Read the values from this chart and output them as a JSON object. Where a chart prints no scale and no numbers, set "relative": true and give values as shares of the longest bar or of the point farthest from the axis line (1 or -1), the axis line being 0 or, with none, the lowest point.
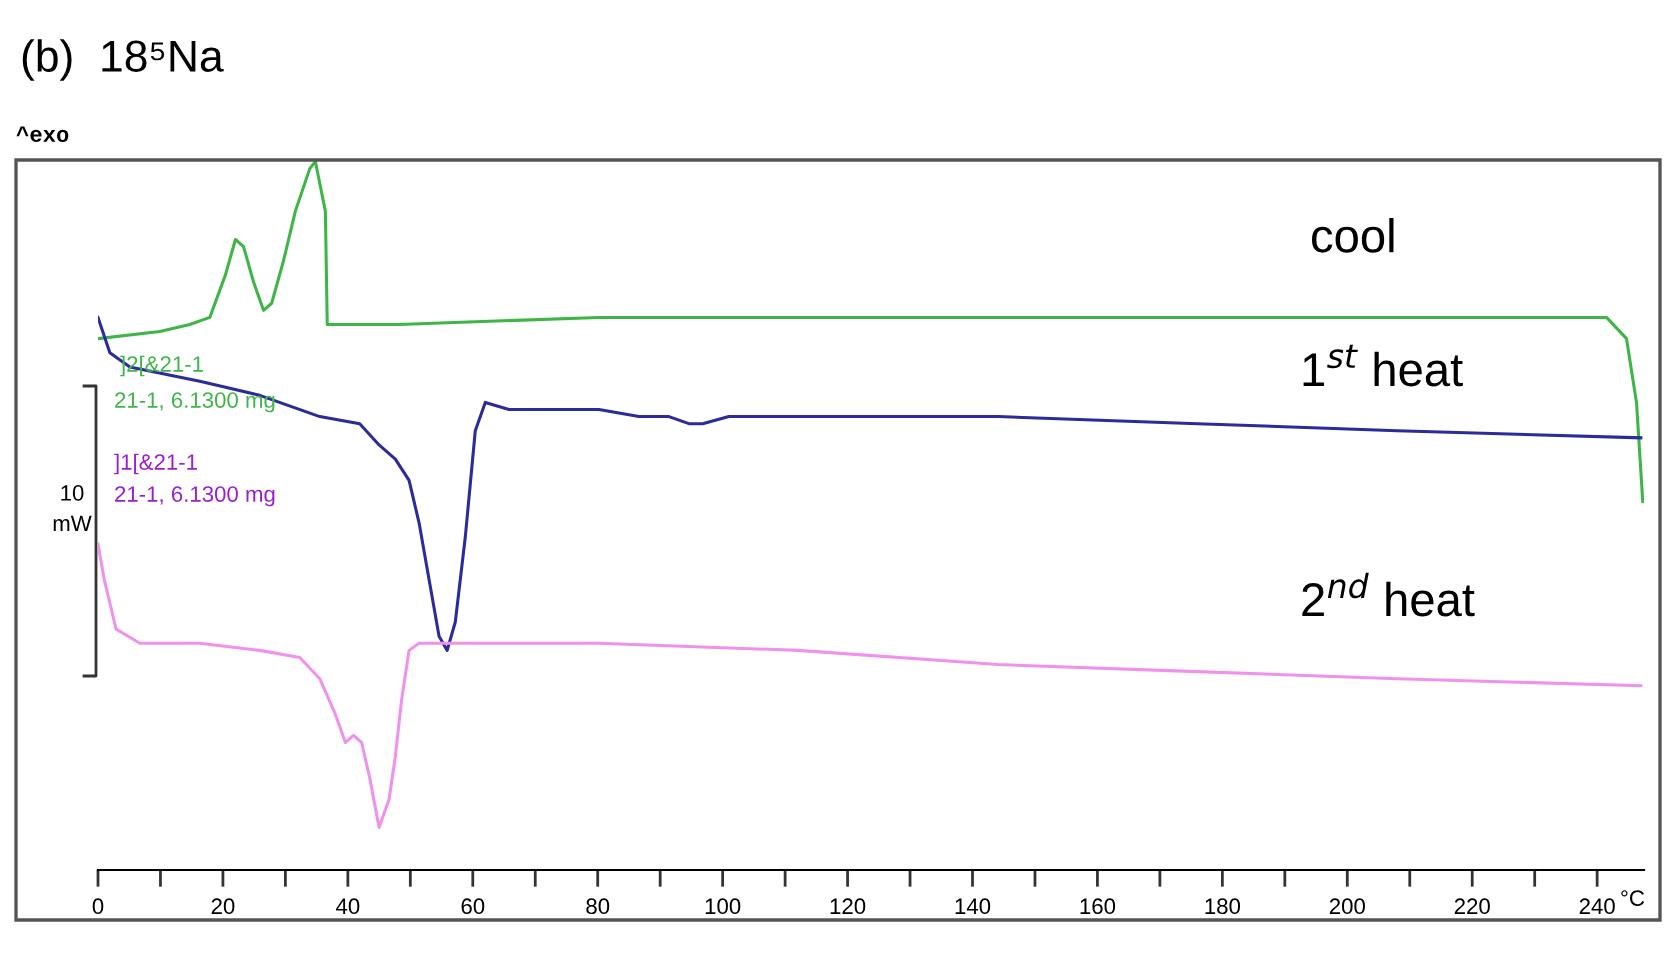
{
  "chart_data": {
    "type": "line",
    "title": "(b)  18⁵Na",
    "xlabel": "°C",
    "relative": true,
    "xlim": [
      0,
      247.5
    ],
    "xticks": [
      0,
      {
        "value": 10,
        "label": null
      },
      20,
      {
        "value": 30,
        "label": null
      },
      40,
      {
        "value": 50,
        "label": null
      },
      60,
      {
        "value": 70,
        "label": null
      },
      80,
      {
        "value": 90,
        "label": null
      },
      100,
      {
        "value": 110,
        "label": null
      },
      120,
      {
        "value": 130,
        "label": null
      },
      140,
      {
        "value": 150,
        "label": null
      },
      160,
      {
        "value": 170,
        "label": null
      },
      180,
      {
        "value": 190,
        "label": null
      },
      200,
      {
        "value": 210,
        "label": null
      },
      220,
      {
        "value": 230,
        "label": null
      },
      240
    ],
    "grid": false,
    "legend": false,
    "marker": "none",
    "line_style": "solid",
    "annotations": [
      "^exo",
      "]2[&21-1",
      "21-1, 6.1300 mg",
      "]1[&21-1",
      "21-1, 6.1300 mg",
      "10 mW"
    ],
    "series": [
      {
        "name": "cool",
        "color": "#3fb548",
        "x": [
          0,
          9.9,
          14.7,
          17.9,
          20.4,
          22.0,
          23.3,
          24.9,
          26.5,
          27.8,
          29.7,
          31.6,
          33.9,
          34.8,
          36.4,
          36.7,
          48.2,
          80.2,
          112.1,
          144.1,
          176.0,
          208.0,
          233.5,
          241.5,
          244.7,
          246.3,
          247.3
        ],
        "values": [
          0.75,
          0.76,
          0.77,
          0.78,
          0.84,
          0.89,
          0.88,
          0.83,
          0.79,
          0.8,
          0.86,
          0.93,
          0.99,
          1.0,
          0.93,
          0.77,
          0.77,
          0.78,
          0.78,
          0.78,
          0.78,
          0.78,
          0.78,
          0.78,
          0.75,
          0.66,
          0.52
        ]
      },
      {
        "name": "1$^{st}$ heat",
        "color": "#2b2b9c",
        "x": [
          0,
          1.9,
          5.1,
          16.3,
          25.9,
          35.5,
          41.9,
          45.0,
          47.6,
          49.8,
          51.4,
          53.0,
          54.6,
          55.9,
          57.2,
          58.8,
          60.4,
          62.0,
          65.8,
          70.6,
          80.2,
          86.6,
          91.4,
          94.6,
          96.8,
          101.0,
          105.8,
          112.1,
          144.1,
          176.0,
          208.0,
          247.0
        ],
        "values": [
          0.78,
          0.73,
          0.71,
          0.69,
          0.67,
          0.64,
          0.63,
          0.6,
          0.58,
          0.55,
          0.49,
          0.41,
          0.33,
          0.31,
          0.35,
          0.47,
          0.62,
          0.66,
          0.65,
          0.65,
          0.65,
          0.64,
          0.64,
          0.63,
          0.63,
          0.64,
          0.64,
          0.64,
          0.64,
          0.63,
          0.62,
          0.61
        ]
      },
      {
        "name": "2$^{nd}$ heat",
        "color": "#ee92ee",
        "x": [
          0,
          1.0,
          2.9,
          6.7,
          16.3,
          25.9,
          32.3,
          35.5,
          38.0,
          39.6,
          40.9,
          42.2,
          43.5,
          45.0,
          46.6,
          47.6,
          48.6,
          49.8,
          51.4,
          64.2,
          80.2,
          112.1,
          144.1,
          176.0,
          208.0,
          247.0
        ],
        "values": [
          0.46,
          0.41,
          0.34,
          0.32,
          0.32,
          0.31,
          0.3,
          0.27,
          0.22,
          0.18,
          0.19,
          0.18,
          0.13,
          0.06,
          0.1,
          0.16,
          0.24,
          0.31,
          0.32,
          0.32,
          0.32,
          0.31,
          0.29,
          0.28,
          0.27,
          0.26
        ]
      }
    ]
  }
}
